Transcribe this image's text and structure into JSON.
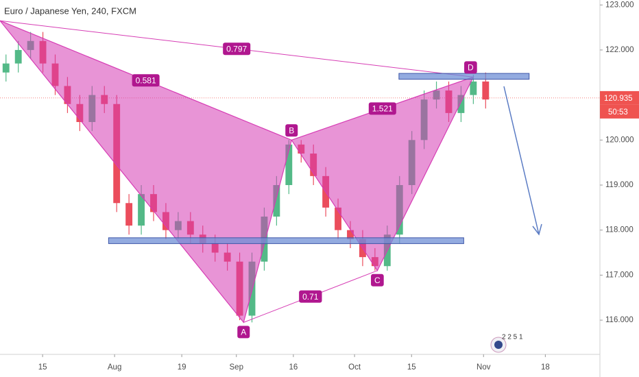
{
  "chart_data": {
    "type": "candlestick",
    "title": "Euro / Japanese Yen, 240, FXCM",
    "x": [
      1,
      3.05,
      5.1,
      7.15,
      9.2,
      11.25,
      13.3,
      15.35,
      17.4,
      19.45,
      21.5,
      23.55,
      25.6,
      27.65,
      29.7,
      31.75,
      33.8,
      35.85,
      37.9,
      39.95,
      42,
      44.05,
      46.1,
      48.15,
      50.2,
      52.25,
      54.3,
      56.35,
      58.4,
      60.45,
      62.5,
      64.55,
      66.6,
      68.65,
      70.7,
      72.75,
      74.8,
      76.85,
      78.9,
      80.95
    ],
    "open": [
      121.5,
      121.7,
      122.0,
      122.2,
      121.7,
      121.2,
      120.8,
      120.4,
      121.0,
      120.8,
      118.6,
      118.1,
      118.8,
      118.4,
      118.0,
      118.2,
      117.9,
      117.7,
      117.5,
      117.3,
      116.1,
      117.3,
      118.3,
      119.0,
      119.9,
      119.7,
      119.2,
      118.5,
      118.0,
      117.8,
      117.4,
      117.2,
      117.9,
      119.0,
      120.0,
      120.9,
      121.1,
      120.6,
      121.0,
      121.3
    ],
    "high": [
      121.9,
      122.2,
      122.4,
      122.4,
      121.9,
      121.4,
      121.0,
      121.2,
      121.2,
      121.0,
      118.8,
      119.0,
      119.0,
      118.6,
      118.4,
      118.4,
      118.1,
      117.9,
      117.7,
      117.5,
      117.5,
      118.5,
      119.2,
      120.0,
      120.0,
      119.9,
      119.4,
      118.7,
      118.2,
      118.0,
      117.6,
      118.1,
      119.2,
      120.2,
      121.1,
      121.3,
      121.3,
      121.2,
      121.45,
      121.5
    ],
    "low": [
      121.3,
      121.5,
      121.8,
      121.5,
      121.0,
      120.6,
      120.2,
      120.2,
      120.6,
      118.4,
      117.9,
      117.9,
      118.2,
      117.8,
      117.8,
      117.7,
      117.5,
      117.3,
      117.1,
      116.0,
      115.95,
      117.1,
      118.1,
      118.8,
      119.5,
      119.0,
      118.3,
      117.8,
      117.6,
      117.2,
      117.1,
      117.1,
      117.7,
      118.8,
      119.8,
      120.7,
      120.4,
      120.4,
      120.8,
      120.7
    ],
    "close": [
      121.7,
      122.0,
      122.2,
      121.7,
      121.2,
      120.8,
      120.4,
      121.0,
      120.8,
      118.6,
      118.1,
      118.8,
      118.4,
      118.0,
      118.2,
      117.9,
      117.7,
      117.5,
      117.3,
      116.1,
      117.3,
      118.3,
      119.0,
      119.9,
      119.7,
      119.2,
      118.5,
      118.0,
      117.8,
      117.4,
      117.2,
      117.9,
      119.0,
      120.0,
      120.9,
      121.1,
      120.6,
      121.0,
      121.3,
      120.9
    ],
    "up_color": "#53b987",
    "down_color": "#eb4d5c",
    "xlim": [
      0,
      100
    ],
    "xticks": [
      {
        "value": 7.1,
        "label": "15"
      },
      {
        "value": 19.1,
        "label": "Aug"
      },
      {
        "value": 30.3,
        "label": "19"
      },
      {
        "value": 39.4,
        "label": "Sep"
      },
      {
        "value": 48.9,
        "label": "16"
      },
      {
        "value": 59.1,
        "label": "Oct"
      },
      {
        "value": 68.6,
        "label": "15"
      },
      {
        "value": 80.6,
        "label": "Nov"
      },
      {
        "value": 90.9,
        "label": "18"
      }
    ],
    "ylim": [
      115.24,
      123.11
    ],
    "yticks": [
      {
        "value": 116,
        "label": "116.000"
      },
      {
        "value": 117,
        "label": "117.000"
      },
      {
        "value": 118,
        "label": "118.000"
      },
      {
        "value": 119,
        "label": "119.000"
      },
      {
        "value": 120,
        "label": "120.000"
      },
      {
        "value": 121,
        "label": "121.000"
      },
      {
        "value": 122,
        "label": "122.000"
      },
      {
        "value": 123,
        "label": "123.000"
      }
    ],
    "last_price": 120.935,
    "countdown": "50:53",
    "pattern": {
      "color": "#d63cb4",
      "points": [
        {
          "label": null,
          "x": 0,
          "y": 122.65
        },
        {
          "label": "A",
          "x": 40.6,
          "y": 115.95
        },
        {
          "label": "B",
          "x": 48.6,
          "y": 120.0
        },
        {
          "label": "C",
          "x": 62.9,
          "y": 117.1
        },
        {
          "label": "D",
          "x": 78.9,
          "y": 121.4
        }
      ],
      "ratios": [
        0.797,
        0.581,
        1.521,
        0.71
      ]
    },
    "zones": [
      {
        "x": [
          18.1,
          77.3
        ],
        "y": [
          117.7,
          117.83
        ]
      },
      {
        "x": [
          66.5,
          88.2
        ],
        "y": [
          121.35,
          121.48
        ]
      }
    ]
  }
}
